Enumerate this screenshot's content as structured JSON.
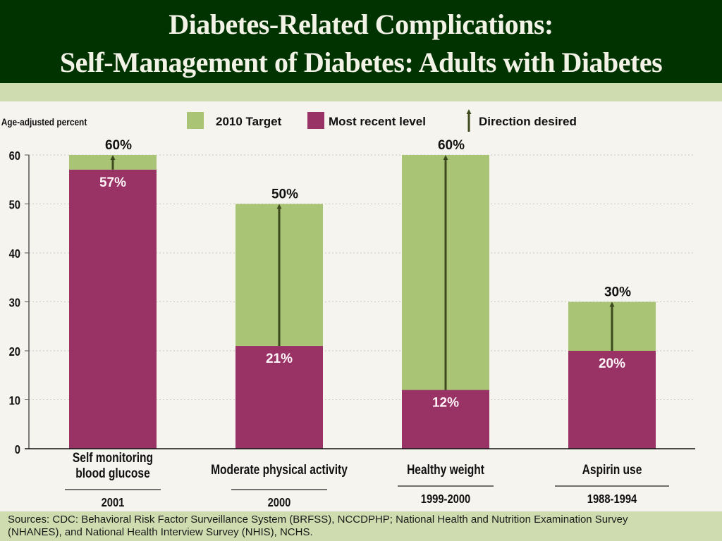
{
  "header": {
    "title_line1": "Diabetes-Related Complications:",
    "title_line2": "Self-Management of Diabetes: Adults with Diabetes"
  },
  "footer": {
    "sources_line1": "Sources: CDC: Behavioral Risk Factor Surveillance System (BRFSS), NCCDPHP;  National Health and Nutrition Examination Survey",
    "sources_line2": "(NHANES), and National Health Interview Survey (NHIS), NCHS."
  },
  "colors": {
    "header_bg": "#003300",
    "band_bg": "#cfdcb0",
    "target": "#aac476",
    "recent": "#993366",
    "arrow": "#3d4a1e"
  },
  "chart_data": {
    "type": "bar",
    "stacked": true,
    "title": "Self-Management of Diabetes: Adults with Diabetes",
    "ylabel": "Age-adjusted percent",
    "xlabel": "",
    "ylim": [
      0,
      60
    ],
    "yticks": [
      0,
      10,
      20,
      30,
      40,
      50,
      60
    ],
    "grid": true,
    "legend": {
      "placement": "top",
      "entries": [
        {
          "label": "2010 Target",
          "swatch": "target"
        },
        {
          "label": "Most recent level",
          "swatch": "recent"
        },
        {
          "label": "Direction desired",
          "swatch": "arrow"
        }
      ]
    },
    "categories": [
      {
        "label_lines": [
          "Self monitoring",
          "blood glucose"
        ],
        "year": "2001"
      },
      {
        "label_lines": [
          "Moderate physical activity"
        ],
        "year": "2000"
      },
      {
        "label_lines": [
          "Healthy weight"
        ],
        "year": "1999-2000"
      },
      {
        "label_lines": [
          "Aspirin use"
        ],
        "year": "1988-1994"
      }
    ],
    "series": [
      {
        "name": "Most recent level",
        "values": [
          57,
          21,
          12,
          20
        ],
        "labels": [
          "57%",
          "21%",
          "12%",
          "20%"
        ]
      },
      {
        "name": "2010 Target",
        "values": [
          60,
          50,
          60,
          30
        ],
        "labels": [
          "60%",
          "50%",
          "60%",
          "30%"
        ]
      }
    ],
    "direction_desired": [
      "up",
      "up",
      "up",
      "up"
    ]
  }
}
